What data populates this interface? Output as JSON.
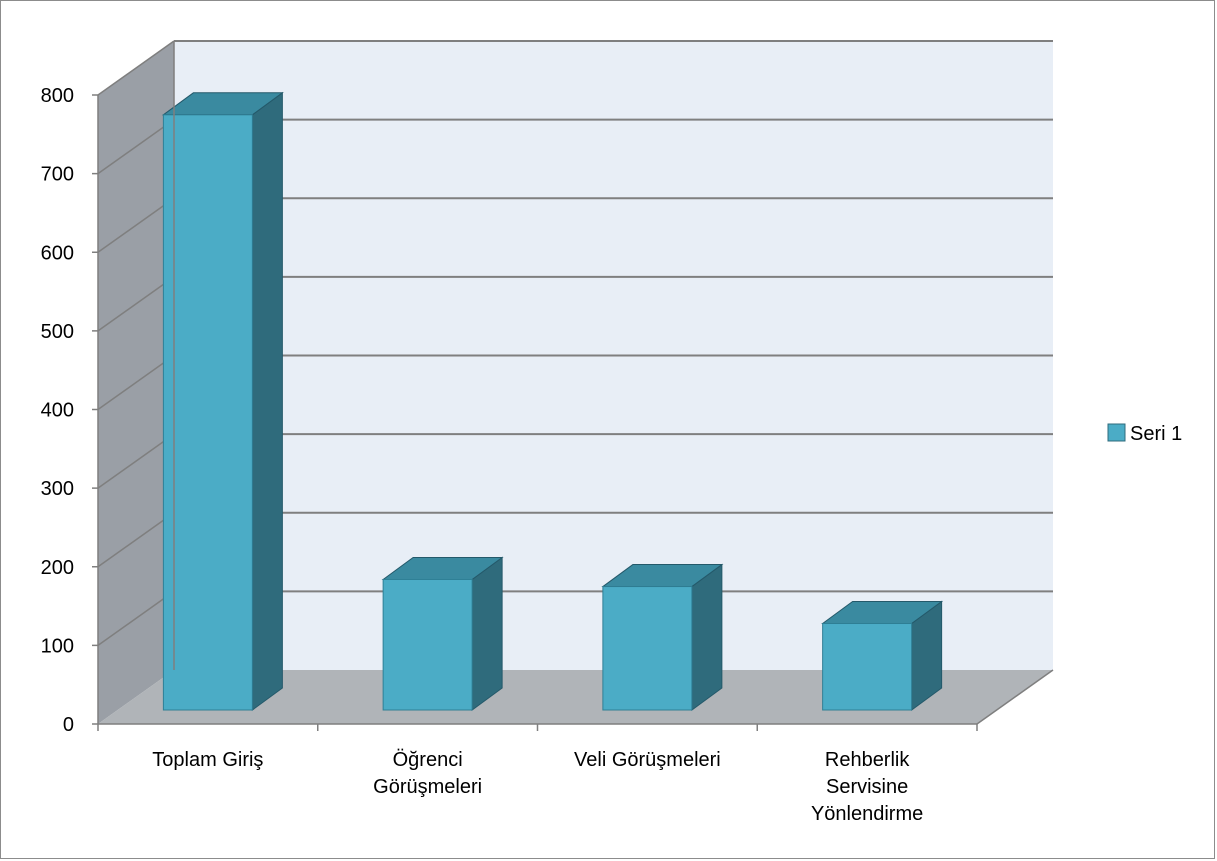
{
  "chart_data": {
    "type": "bar",
    "categories": [
      [
        "Toplam Giriş"
      ],
      [
        "Öğrenci",
        "Görüşmeleri"
      ],
      [
        "Veli Görüşmeleri"
      ],
      [
        "Rehberlik",
        "Servisine",
        "Yönlendirme"
      ]
    ],
    "series": [
      {
        "name": "Seri 1",
        "values": [
          757,
          166,
          157,
          110
        ]
      }
    ],
    "ylim": [
      0,
      800
    ],
    "yticks": [
      0,
      100,
      200,
      300,
      400,
      500,
      600,
      700,
      800
    ],
    "grid": true,
    "legend": "right",
    "colors": {
      "bar_front": "#4bacc6",
      "bar_side": "#2f6b7c",
      "bar_top": "#3a8aa0",
      "wall": "#e8eef6",
      "side_wall": "#9a9fa6",
      "floor": "#b0b4b8",
      "grid": "#7f7f7f"
    }
  }
}
